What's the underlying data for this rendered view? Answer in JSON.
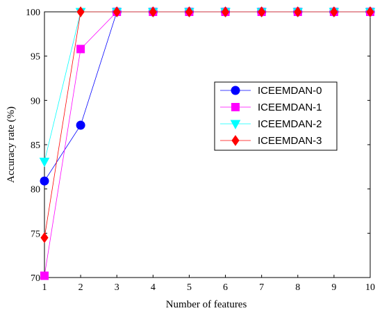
{
  "chart_data": {
    "type": "line",
    "xlabel": "Number of features",
    "ylabel": "Accuracy rate (%)",
    "xlim": [
      1,
      10
    ],
    "ylim": [
      70,
      100
    ],
    "xticks": [
      1,
      2,
      3,
      4,
      5,
      6,
      7,
      8,
      9,
      10
    ],
    "yticks": [
      70,
      75,
      80,
      85,
      90,
      95,
      100
    ],
    "grid": false,
    "legend_position": "right",
    "x": [
      1,
      2,
      3,
      4,
      5,
      6,
      7,
      8,
      9,
      10
    ],
    "series": [
      {
        "name": "ICEEMDAN-0",
        "color": "#0000ff",
        "marker": "circle",
        "values": [
          80.9,
          87.2,
          100,
          100,
          100,
          100,
          100,
          100,
          100,
          100
        ]
      },
      {
        "name": "ICEEMDAN-1",
        "color": "#ff00ff",
        "marker": "square",
        "values": [
          70.2,
          95.8,
          100,
          100,
          100,
          100,
          100,
          100,
          100,
          100
        ]
      },
      {
        "name": "ICEEMDAN-2",
        "color": "#00ffff",
        "marker": "triangle-down",
        "values": [
          83.1,
          100,
          100,
          100,
          100,
          100,
          100,
          100,
          100,
          100
        ]
      },
      {
        "name": "ICEEMDAN-3",
        "color": "#ff0000",
        "marker": "diamond",
        "values": [
          74.5,
          100,
          100,
          100,
          100,
          100,
          100,
          100,
          100,
          100
        ]
      }
    ]
  }
}
